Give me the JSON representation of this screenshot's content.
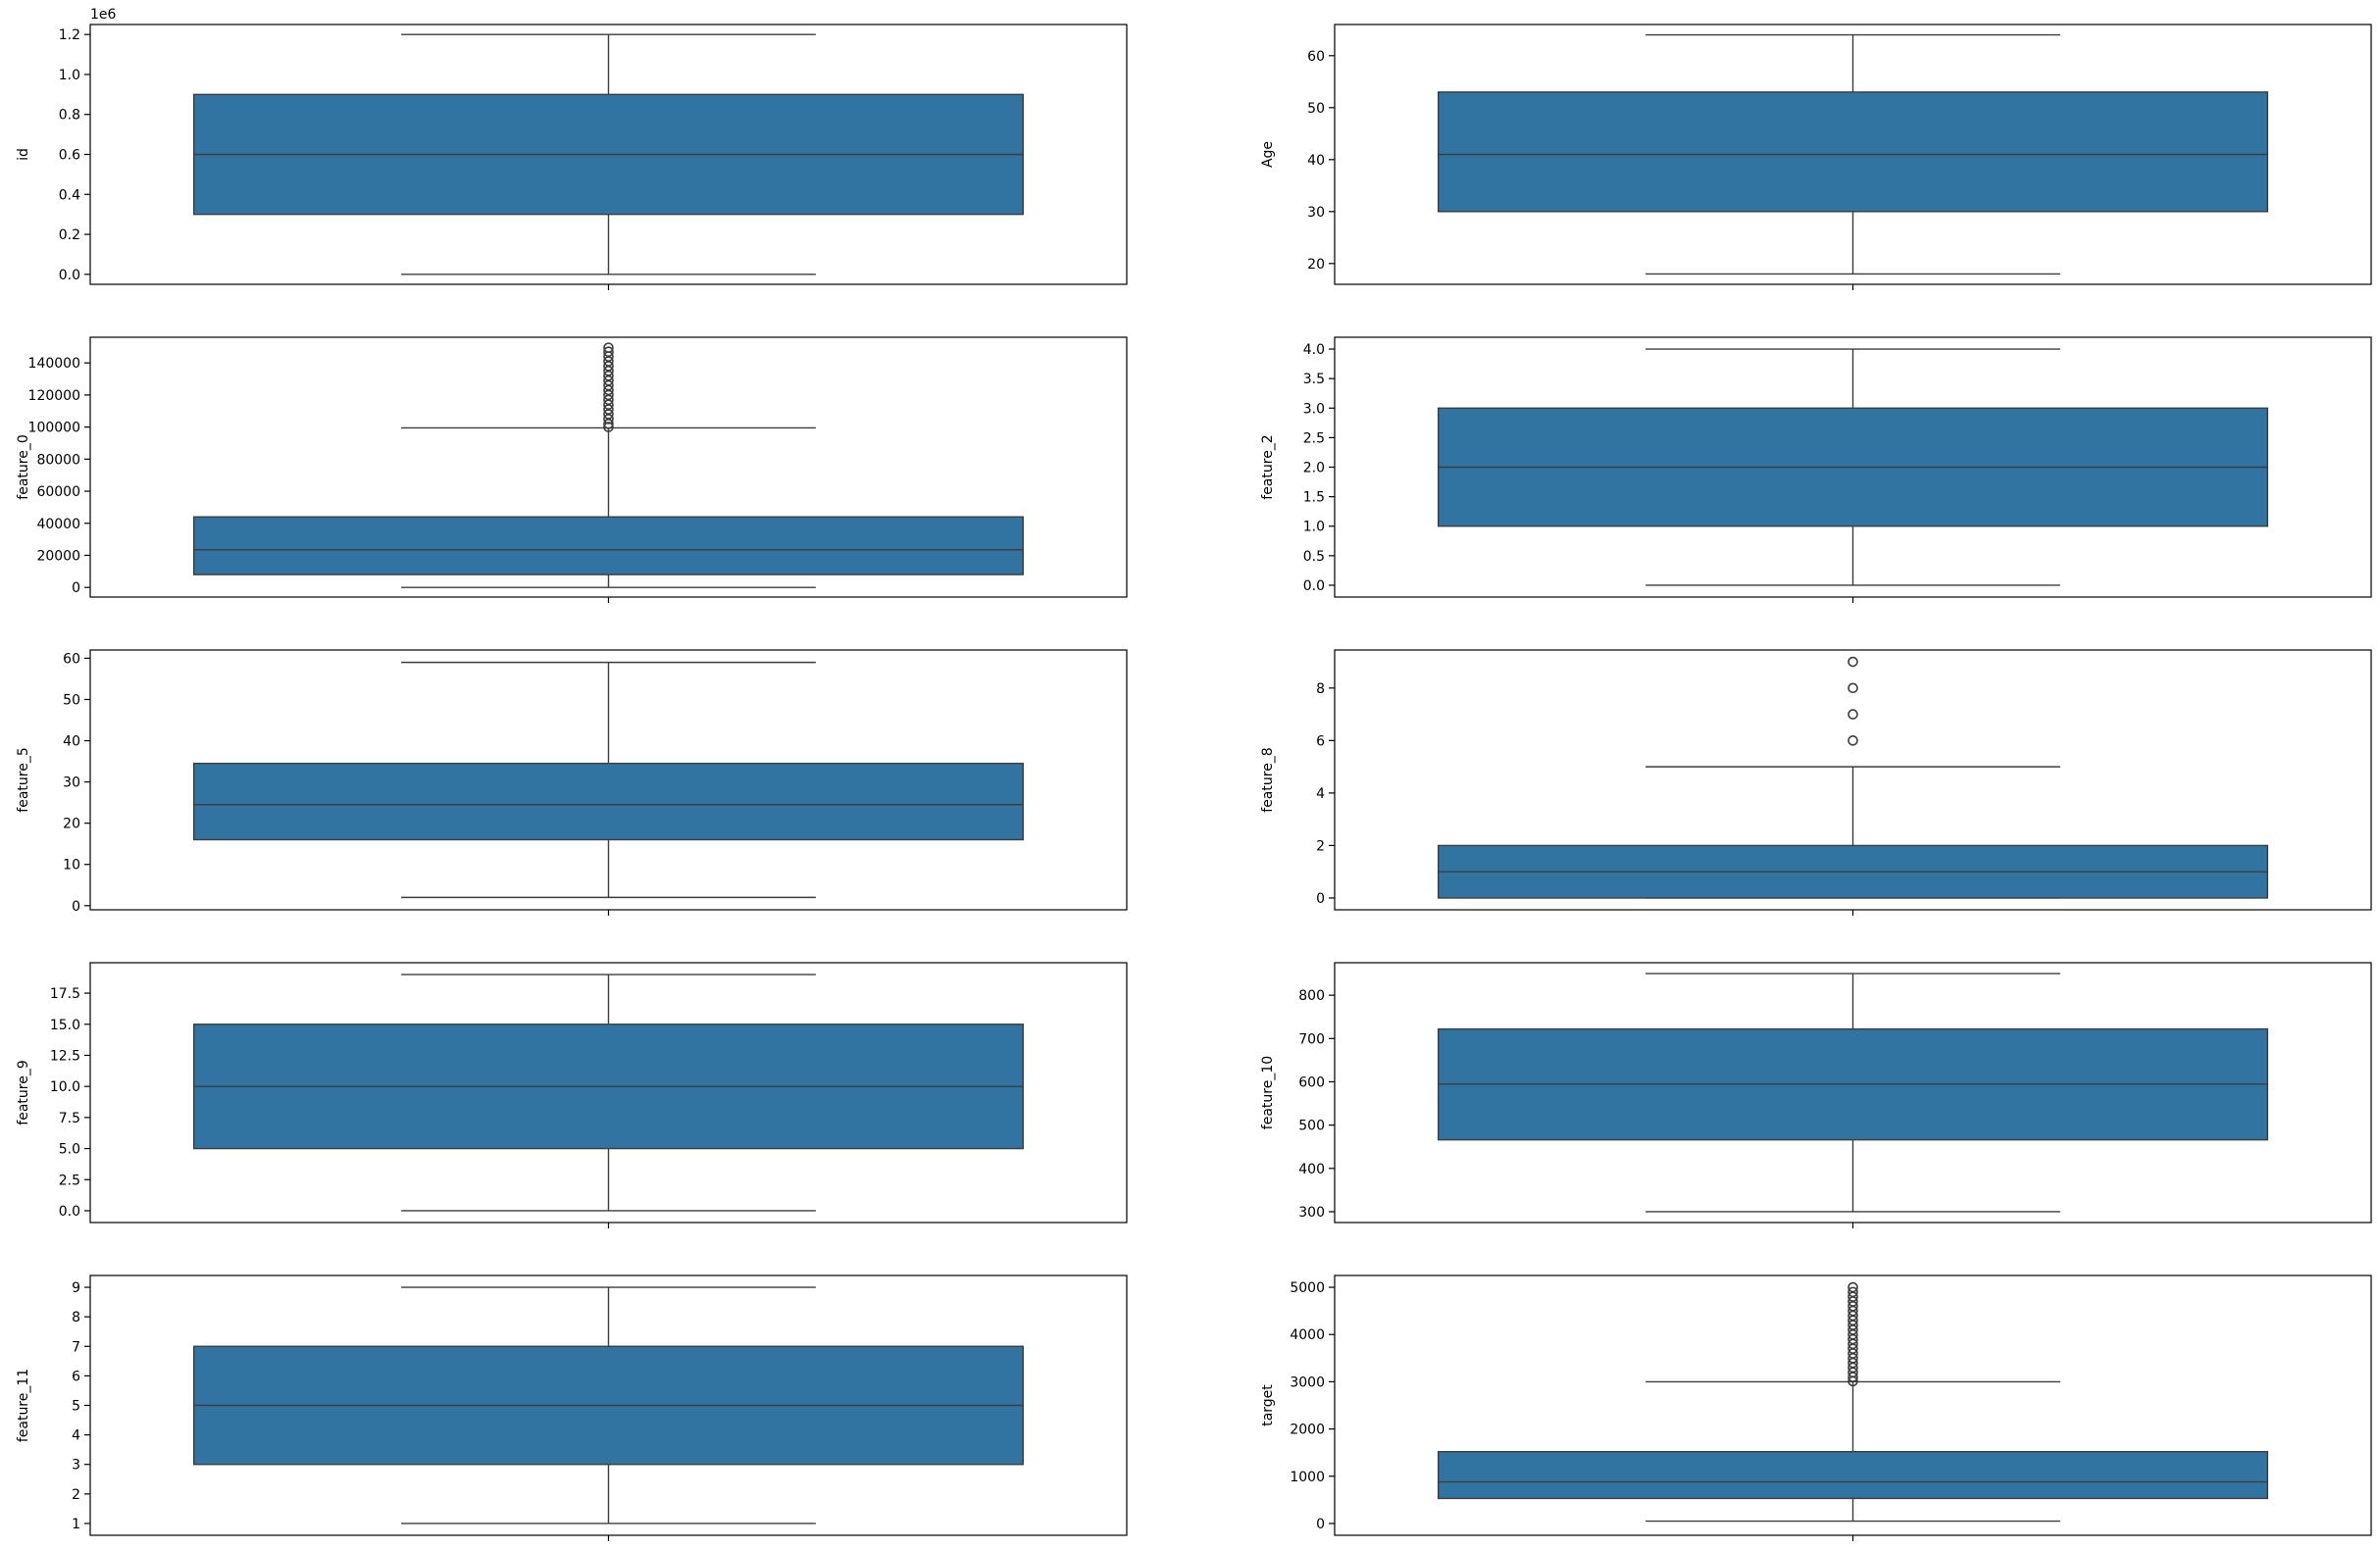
{
  "colors": {
    "box_fill": "#3274a1",
    "line": "#3d3d3d",
    "outlier": "#3d3d3d",
    "frame": "#000000"
  },
  "chart_data": [
    {
      "type": "box",
      "ylabel": "id",
      "ylim": [
        -50000,
        1250000
      ],
      "yticks": [
        0,
        200000,
        400000,
        600000,
        800000,
        1000000,
        1200000
      ],
      "ytick_labels": [
        "0.0",
        "0.2",
        "0.4",
        "0.6",
        "0.8",
        "1.0",
        "1.2"
      ],
      "offset_label": "1e6",
      "whisker_low": 0,
      "q1": 300000,
      "median": 600000,
      "q3": 900000,
      "whisker_high": 1200000,
      "outliers": []
    },
    {
      "type": "box",
      "ylabel": "Age",
      "ylim": [
        16,
        66
      ],
      "yticks": [
        20,
        30,
        40,
        50,
        60
      ],
      "ytick_labels": [
        "20",
        "30",
        "40",
        "50",
        "60"
      ],
      "whisker_low": 18,
      "q1": 30,
      "median": 41,
      "q3": 53,
      "whisker_high": 64,
      "outliers": []
    },
    {
      "type": "box",
      "ylabel": "feature_0",
      "ylim": [
        -6000,
        156000
      ],
      "yticks": [
        0,
        20000,
        40000,
        60000,
        80000,
        100000,
        120000,
        140000
      ],
      "ytick_labels": [
        "0",
        "20000",
        "40000",
        "60000",
        "80000",
        "100000",
        "120000",
        "140000"
      ],
      "whisker_low": 0,
      "q1": 8000,
      "median": 23500,
      "q3": 44000,
      "whisker_high": 99500,
      "outliers": [
        100000,
        102000,
        105000,
        108000,
        111000,
        114000,
        117000,
        120000,
        123000,
        126000,
        129000,
        132000,
        135000,
        138000,
        141000,
        144000,
        147000,
        149500
      ]
    },
    {
      "type": "box",
      "ylabel": "feature_2",
      "ylim": [
        -0.2,
        4.2
      ],
      "yticks": [
        0,
        0.5,
        1,
        1.5,
        2,
        2.5,
        3,
        3.5,
        4
      ],
      "ytick_labels": [
        "0.0",
        "0.5",
        "1.0",
        "1.5",
        "2.0",
        "2.5",
        "3.0",
        "3.5",
        "4.0"
      ],
      "whisker_low": 0,
      "q1": 1,
      "median": 2,
      "q3": 3,
      "whisker_high": 4,
      "outliers": []
    },
    {
      "type": "box",
      "ylabel": "feature_5",
      "ylim": [
        -1,
        62
      ],
      "yticks": [
        0,
        10,
        20,
        30,
        40,
        50,
        60
      ],
      "ytick_labels": [
        "0",
        "10",
        "20",
        "30",
        "40",
        "50",
        "60"
      ],
      "whisker_low": 2,
      "q1": 16,
      "median": 24.5,
      "q3": 34.5,
      "whisker_high": 59,
      "outliers": []
    },
    {
      "type": "box",
      "ylabel": "feature_8",
      "ylim": [
        -0.45,
        9.45
      ],
      "yticks": [
        0,
        2,
        4,
        6,
        8
      ],
      "ytick_labels": [
        "0",
        "2",
        "4",
        "6",
        "8"
      ],
      "whisker_low": 0,
      "q1": 0,
      "median": 1,
      "q3": 2,
      "whisker_high": 5,
      "outliers": [
        6,
        7,
        8,
        9
      ]
    },
    {
      "type": "box",
      "ylabel": "feature_9",
      "ylim": [
        -0.95,
        19.95
      ],
      "yticks": [
        0,
        2.5,
        5,
        7.5,
        10,
        12.5,
        15,
        17.5
      ],
      "ytick_labels": [
        "0.0",
        "2.5",
        "5.0",
        "7.5",
        "10.0",
        "12.5",
        "15.0",
        "17.5"
      ],
      "whisker_low": 0,
      "q1": 5,
      "median": 10,
      "q3": 15,
      "whisker_high": 19,
      "outliers": []
    },
    {
      "type": "box",
      "ylabel": "feature_10",
      "ylim": [
        275,
        875
      ],
      "yticks": [
        300,
        400,
        500,
        600,
        700,
        800
      ],
      "ytick_labels": [
        "300",
        "400",
        "500",
        "600",
        "700",
        "800"
      ],
      "whisker_low": 300,
      "q1": 466,
      "median": 595,
      "q3": 722,
      "whisker_high": 850,
      "outliers": []
    },
    {
      "type": "box",
      "ylabel": "feature_11",
      "ylim": [
        0.6,
        9.4
      ],
      "yticks": [
        1,
        2,
        3,
        4,
        5,
        6,
        7,
        8,
        9
      ],
      "ytick_labels": [
        "1",
        "2",
        "3",
        "4",
        "5",
        "6",
        "7",
        "8",
        "9"
      ],
      "whisker_low": 1,
      "q1": 3,
      "median": 5,
      "q3": 7,
      "whisker_high": 9,
      "outliers": []
    },
    {
      "type": "box",
      "ylabel": "target",
      "ylim": [
        -250,
        5250
      ],
      "yticks": [
        0,
        1000,
        2000,
        3000,
        4000,
        5000
      ],
      "ytick_labels": [
        "0",
        "1000",
        "2000",
        "3000",
        "4000",
        "5000"
      ],
      "whisker_low": 50,
      "q1": 530,
      "median": 880,
      "q3": 1520,
      "whisker_high": 3000,
      "outliers": [
        3010,
        3100,
        3200,
        3300,
        3400,
        3500,
        3600,
        3700,
        3800,
        3900,
        4000,
        4100,
        4200,
        4300,
        4400,
        4500,
        4600,
        4700,
        4800,
        4900,
        5000
      ]
    }
  ]
}
